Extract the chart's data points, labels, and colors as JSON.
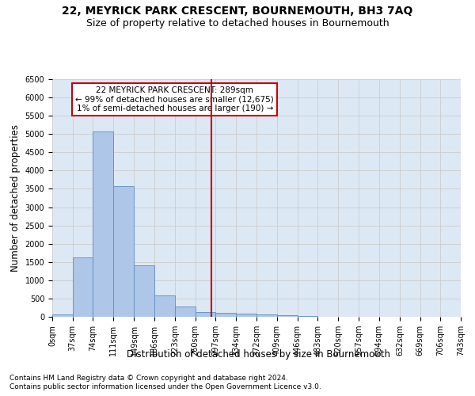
{
  "title": "22, MEYRICK PARK CRESCENT, BOURNEMOUTH, BH3 7AQ",
  "subtitle": "Size of property relative to detached houses in Bournemouth",
  "xlabel": "Distribution of detached houses by size in Bournemouth",
  "ylabel": "Number of detached properties",
  "footnote1": "Contains HM Land Registry data © Crown copyright and database right 2024.",
  "footnote2": "Contains public sector information licensed under the Open Government Licence v3.0.",
  "annotation_lines": [
    "22 MEYRICK PARK CRESCENT: 289sqm",
    "← 99% of detached houses are smaller (12,675)",
    "1% of semi-detached houses are larger (190) →"
  ],
  "bar_edges": [
    0,
    37,
    74,
    111,
    149,
    186,
    223,
    260,
    297,
    334,
    372,
    409,
    446,
    483,
    520,
    557,
    594,
    632,
    669,
    706,
    743
  ],
  "bar_heights": [
    70,
    1620,
    5080,
    3570,
    1400,
    590,
    290,
    140,
    100,
    80,
    60,
    40,
    30,
    0,
    0,
    0,
    0,
    0,
    0,
    0
  ],
  "bar_color": "#aec6e8",
  "bar_edgecolor": "#5a8fc0",
  "property_x": 289,
  "vline_color": "#cc0000",
  "ylim": [
    0,
    6500
  ],
  "xlim": [
    0,
    743
  ],
  "yticks": [
    0,
    500,
    1000,
    1500,
    2000,
    2500,
    3000,
    3500,
    4000,
    4500,
    5000,
    5500,
    6000,
    6500
  ],
  "grid_color": "#cccccc",
  "bg_color": "#dde8f5",
  "title_fontsize": 10,
  "subtitle_fontsize": 9,
  "axis_label_fontsize": 8.5,
  "tick_fontsize": 7,
  "annotation_fontsize": 7.5,
  "footnote_fontsize": 6.5
}
